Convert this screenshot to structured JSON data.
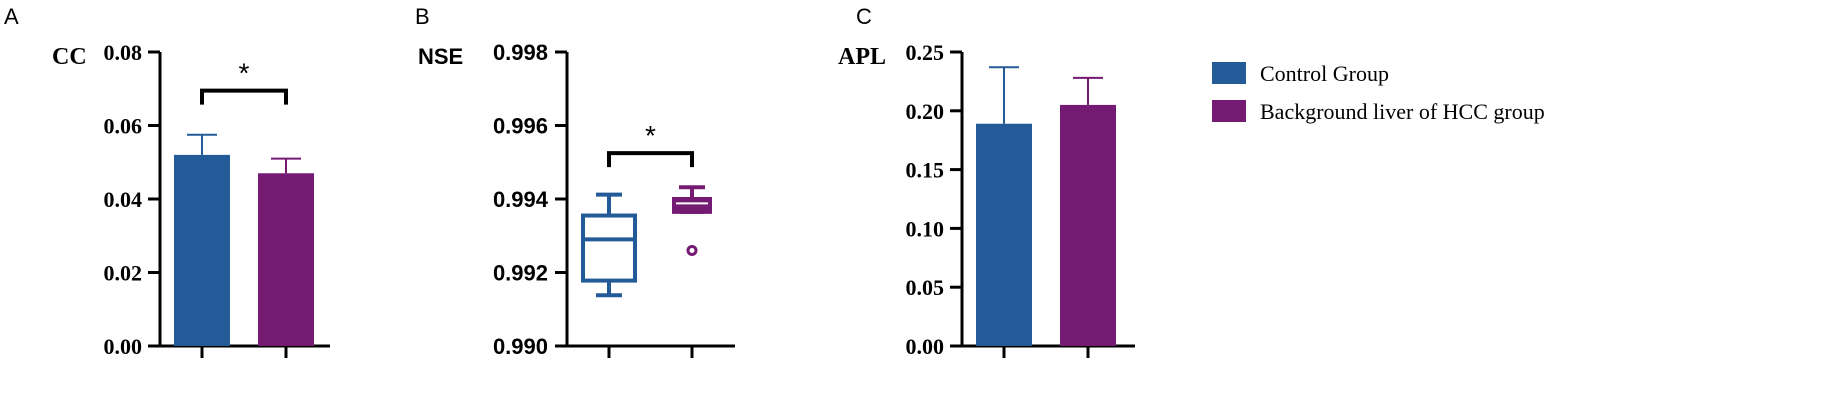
{
  "colors": {
    "control": "#235a98",
    "hcc": "#741a73"
  },
  "legend": {
    "placement": "right",
    "items": [
      {
        "label": "Control Group",
        "color": "#235a98"
      },
      {
        "label": "Background liver of HCC group",
        "color": "#741a73"
      }
    ]
  },
  "chart_data": [
    {
      "panel": "A",
      "type": "bar",
      "ylabel": "CC",
      "ylim": [
        0,
        0.08
      ],
      "yticks": [
        "0.00",
        "0.02",
        "0.04",
        "0.06",
        "0.08"
      ],
      "series": [
        {
          "name": "Control Group",
          "value": 0.052,
          "error": 0.0055
        },
        {
          "name": "Background liver of HCC group",
          "value": 0.047,
          "error": 0.004
        }
      ],
      "significance": {
        "label": "*",
        "between": [
          0,
          1
        ],
        "y": 0.0695
      }
    },
    {
      "panel": "B",
      "type": "box",
      "ylabel": "NSE",
      "ylim": [
        0.99,
        0.998
      ],
      "yticks": [
        "0.990",
        "0.992",
        "0.994",
        "0.996",
        "0.998"
      ],
      "series": [
        {
          "name": "Control Group",
          "whisker_low": 0.99138,
          "q1": 0.99178,
          "median": 0.9929,
          "q3": 0.99355,
          "whisker_high": 0.99412,
          "outliers": []
        },
        {
          "name": "Background liver of HCC group",
          "whisker_low": 0.99365,
          "q1": 0.99365,
          "median": 0.99388,
          "q3": 0.994,
          "whisker_high": 0.99432,
          "outliers": [
            0.9926
          ]
        }
      ],
      "significance": {
        "label": "*",
        "between": [
          0,
          1
        ],
        "y": 0.99525
      }
    },
    {
      "panel": "C",
      "type": "bar",
      "ylabel": "APL",
      "ylim": [
        0,
        0.25
      ],
      "yticks": [
        "0.00",
        "0.05",
        "0.10",
        "0.15",
        "0.20",
        "0.25"
      ],
      "series": [
        {
          "name": "Control Group",
          "value": 0.189,
          "error": 0.048
        },
        {
          "name": "Background liver of HCC group",
          "value": 0.205,
          "error": 0.023
        }
      ]
    }
  ]
}
